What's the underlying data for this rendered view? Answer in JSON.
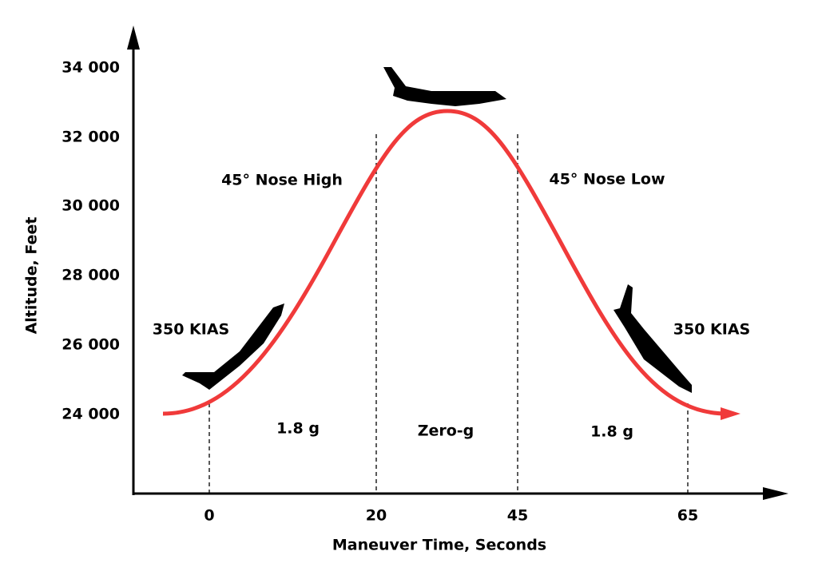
{
  "y_axis": {
    "label": "Altitude, Feet",
    "ticks": [
      "34 000",
      "32 000",
      "30 000",
      "28 000",
      "26 000",
      "24 000"
    ]
  },
  "x_axis": {
    "label": "Maneuver Time, Seconds",
    "ticks": [
      "0",
      "20",
      "45",
      "65"
    ]
  },
  "annotations": {
    "nose_high": "45° Nose High",
    "nose_low": "45° Nose Low",
    "kias_left": "350 KIAS",
    "kias_right": "350 KIAS",
    "g_left": "1.8 g",
    "zero_g": "Zero-g",
    "g_right": "1.8 g"
  }
}
